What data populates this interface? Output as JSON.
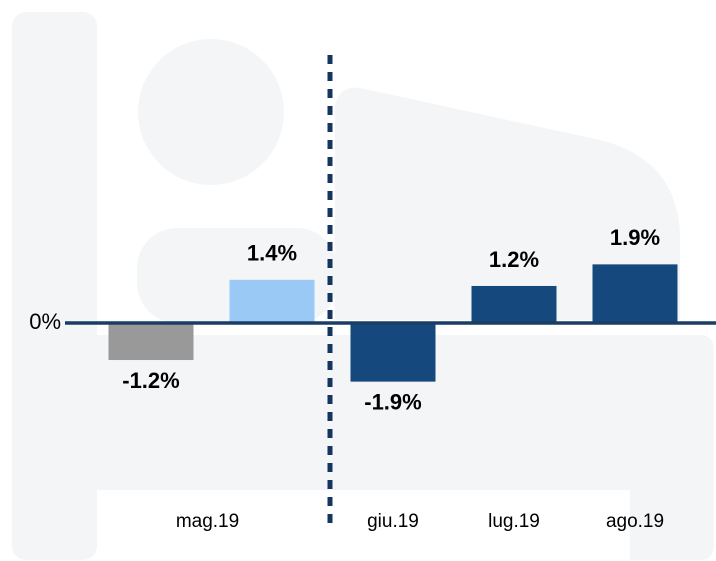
{
  "chart_data": {
    "type": "bar",
    "categories": [
      "mag.19",
      null,
      "giu.19",
      "lug.19",
      "ago.19"
    ],
    "values": [
      -1.2,
      1.4,
      -1.9,
      1.2,
      1.9
    ],
    "value_labels": [
      "-1.2%",
      "1.4%",
      "-1.9%",
      "1.2%",
      "1.9%"
    ],
    "colors": [
      "#999999",
      "#99c9f4",
      "#15497e",
      "#15497e",
      "#15497e"
    ],
    "ylim": [
      -3.5,
      3.5
    ],
    "yticks": [
      {
        "value": 0,
        "label": "0%"
      }
    ]
  }
}
